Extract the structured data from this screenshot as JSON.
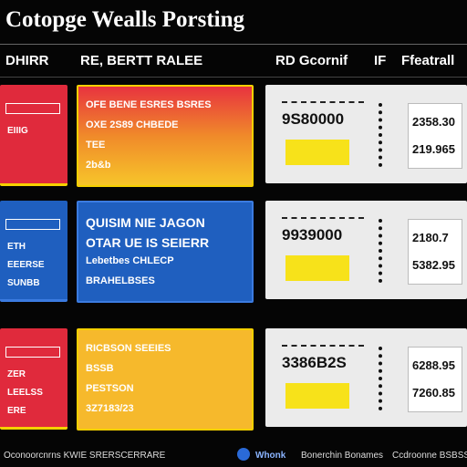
{
  "title": "Cotopge Wealls Porsting",
  "header": [
    "DHIRR",
    "RE, BERTT RALEE",
    "RD Gcornif",
    "IF",
    "Ffeatrall"
  ],
  "rows": [
    {
      "left": [
        "EIIIG"
      ],
      "middle": [
        "OFE BENE ESRES BSRES",
        "OXE 2S89 CHBEDE",
        "TEE",
        "2b&b"
      ],
      "right": [
        "9S80000",
        "2358.30",
        "219.965"
      ]
    },
    {
      "left": [
        "ETH",
        "EEERSE",
        "SUNBB"
      ],
      "middle": [
        "QUISIM NIE JAGON",
        "OTAR UE IS SEIERR",
        "Lebetbes CHLECP",
        "BRAHELBSES"
      ],
      "right": [
        "9939000",
        "2180.7",
        "5382.95"
      ]
    },
    {
      "left": [
        "ZER",
        "LEELSS",
        "ERE"
      ],
      "middle": [
        "RICBSON SEEIES",
        "BSSB",
        "PESTSON",
        "3Z7183/23"
      ],
      "right": [
        "3386B2S",
        "6288.95",
        "7260.85"
      ]
    }
  ],
  "footer": [
    "Oconoorcnrns KWIE SRERSCERRARE",
    "Whonk",
    "Bonerchin Bonames",
    "Ccdroonne BSBSS"
  ]
}
